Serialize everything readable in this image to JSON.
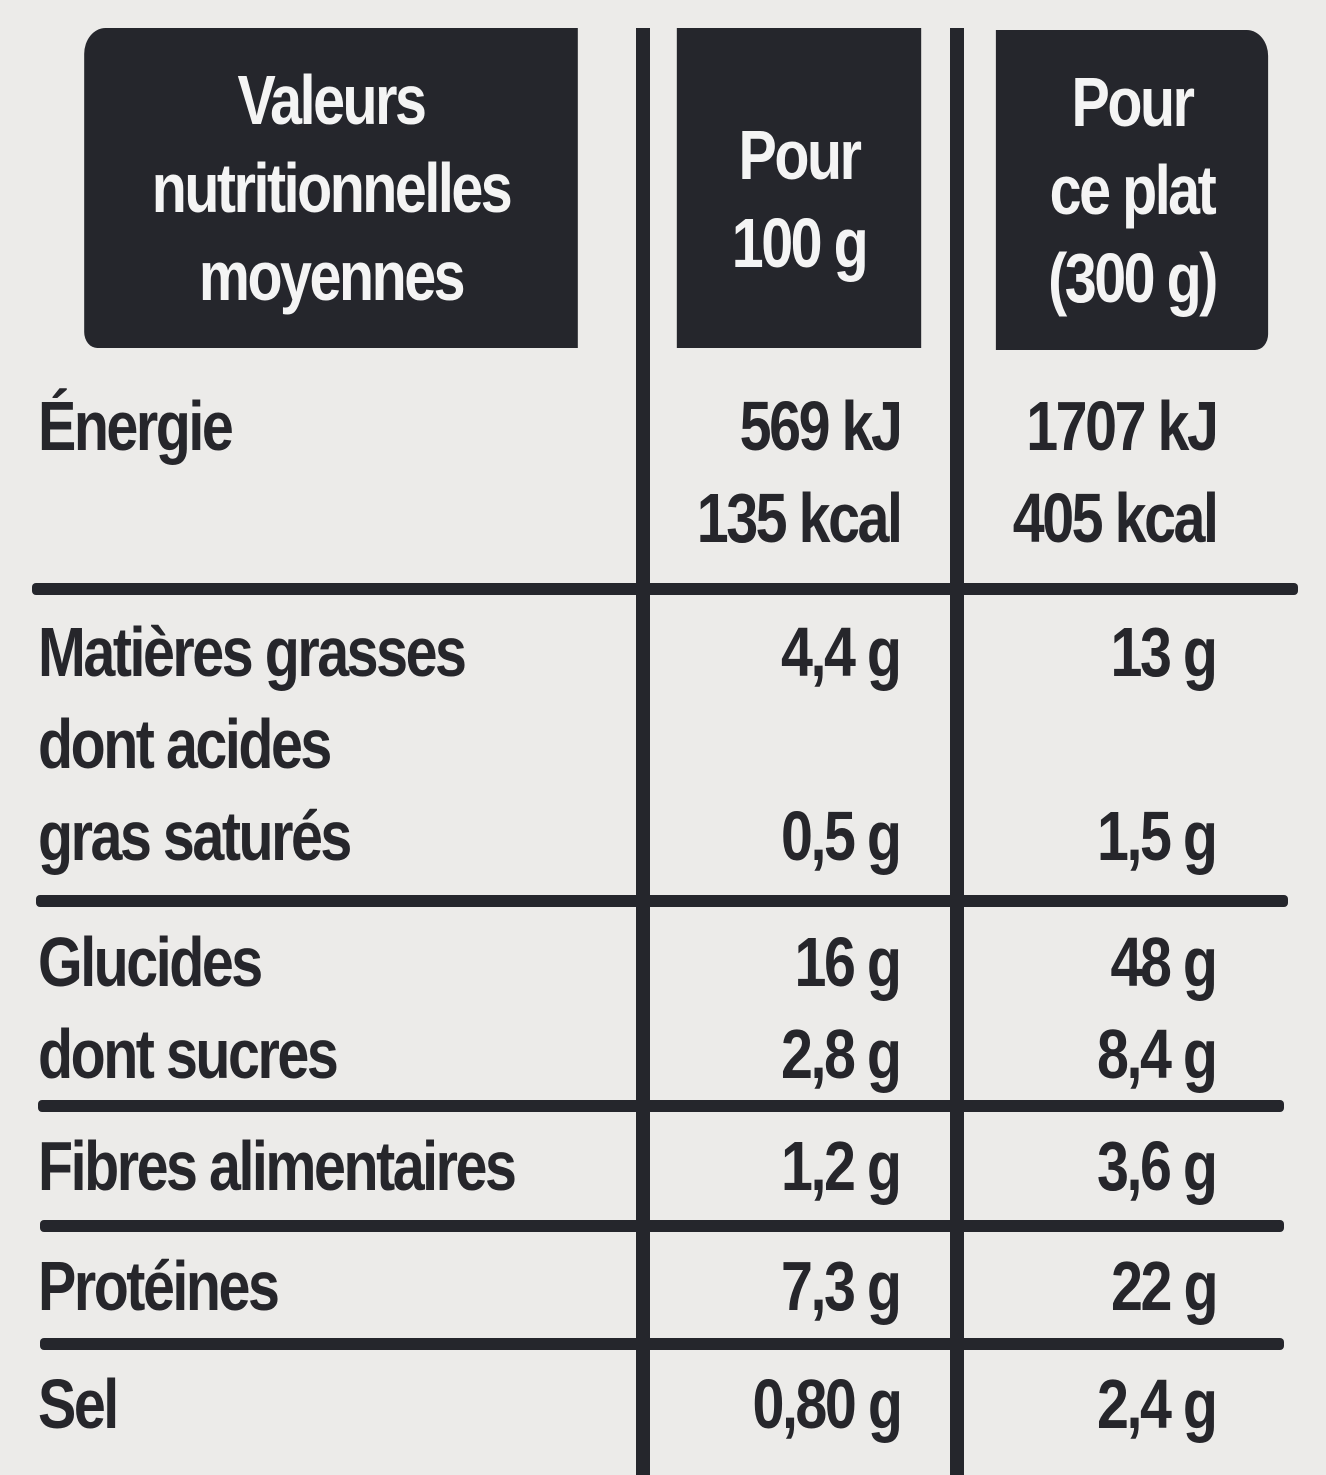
{
  "header": {
    "col1": [
      "Valeurs",
      "nutritionnelles",
      "moyennes"
    ],
    "col2": [
      "Pour",
      "100 g"
    ],
    "col3": [
      "Pour",
      "ce plat",
      "(300 g)"
    ]
  },
  "rows": [
    {
      "labels": [
        "Énergie"
      ],
      "per100": [
        "569 kJ",
        "135 kcal"
      ],
      "perDish": [
        "1707 kJ",
        "405 kcal"
      ]
    },
    {
      "labels": [
        "Matières grasses",
        "dont acides",
        "gras saturés"
      ],
      "per100": [
        "4,4 g",
        "",
        "0,5 g"
      ],
      "perDish": [
        "13 g",
        "",
        "1,5 g"
      ]
    },
    {
      "labels": [
        "Glucides",
        "dont sucres"
      ],
      "per100": [
        "16 g",
        "2,8 g"
      ],
      "perDish": [
        "48 g",
        "8,4 g"
      ]
    },
    {
      "labels": [
        "Fibres alimentaires"
      ],
      "per100": [
        "1,2 g"
      ],
      "perDish": [
        "3,6 g"
      ]
    },
    {
      "labels": [
        "Protéines"
      ],
      "per100": [
        "7,3 g"
      ],
      "perDish": [
        "22 g"
      ]
    },
    {
      "labels": [
        "Sel"
      ],
      "per100": [
        "0,80 g"
      ],
      "perDish": [
        "2,4 g"
      ]
    }
  ]
}
